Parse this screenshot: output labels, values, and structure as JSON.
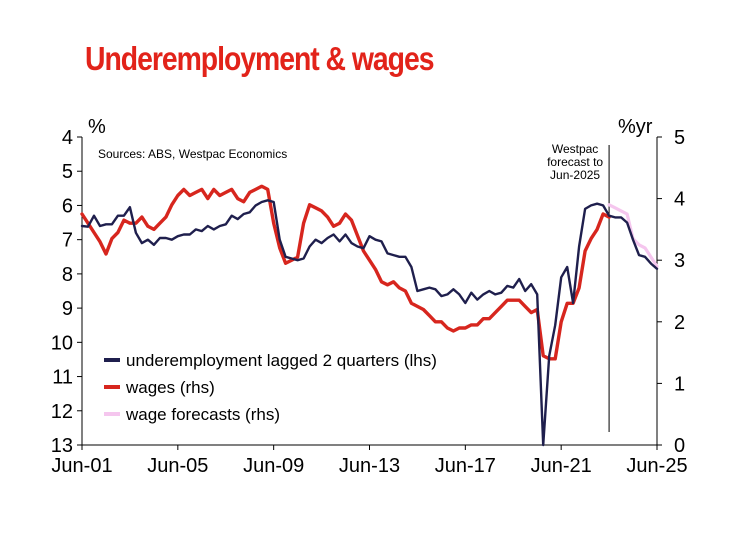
{
  "page": {
    "title": "Underemployment & wages"
  },
  "chart_data": {
    "type": "line",
    "title": "Underemployment & wages",
    "source": "Sources: ABS, Westpac Economics",
    "annotation": "Westpac forecast to Jun-2025",
    "annotation_lines": [
      "Westpac",
      "forecast to",
      "Jun-2025"
    ],
    "annotation_x": 2023.0,
    "x_ticks": [
      "Jun-01",
      "Jun-05",
      "Jun-09",
      "Jun-13",
      "Jun-17",
      "Jun-21",
      "Jun-25"
    ],
    "xlim": [
      2001.0,
      2025.0
    ],
    "y_left": {
      "unit": "%",
      "range": [
        4,
        13
      ],
      "ticks": [
        4,
        5,
        6,
        7,
        8,
        9,
        10,
        11,
        12,
        13
      ],
      "inverted": true
    },
    "y_right": {
      "unit": "%yr",
      "range": [
        0,
        5
      ],
      "ticks": [
        0,
        1,
        2,
        3,
        4,
        5
      ]
    },
    "grid": false,
    "legend_position": "bottom-left",
    "series": [
      {
        "name": "underemployment lagged 2 quarters (lhs)",
        "axis": "left",
        "color": "#1f1f4d",
        "points": [
          [
            2001.0,
            6.6
          ],
          [
            2001.25,
            6.62
          ],
          [
            2001.5,
            6.3
          ],
          [
            2001.75,
            6.6
          ],
          [
            2002.0,
            6.55
          ],
          [
            2002.25,
            6.55
          ],
          [
            2002.5,
            6.3
          ],
          [
            2002.75,
            6.3
          ],
          [
            2003.0,
            6.05
          ],
          [
            2003.25,
            6.8
          ],
          [
            2003.5,
            7.1
          ],
          [
            2003.75,
            7.0
          ],
          [
            2004.0,
            7.15
          ],
          [
            2004.25,
            6.95
          ],
          [
            2004.5,
            6.95
          ],
          [
            2004.75,
            7.0
          ],
          [
            2005.0,
            6.9
          ],
          [
            2005.25,
            6.85
          ],
          [
            2005.5,
            6.85
          ],
          [
            2005.75,
            6.7
          ],
          [
            2006.0,
            6.75
          ],
          [
            2006.25,
            6.6
          ],
          [
            2006.5,
            6.7
          ],
          [
            2006.75,
            6.6
          ],
          [
            2007.0,
            6.55
          ],
          [
            2007.25,
            6.3
          ],
          [
            2007.5,
            6.4
          ],
          [
            2007.75,
            6.25
          ],
          [
            2008.0,
            6.2
          ],
          [
            2008.25,
            6.0
          ],
          [
            2008.5,
            5.9
          ],
          [
            2008.75,
            5.85
          ],
          [
            2009.0,
            5.9
          ],
          [
            2009.25,
            7.0
          ],
          [
            2009.5,
            7.5
          ],
          [
            2009.75,
            7.55
          ],
          [
            2010.0,
            7.6
          ],
          [
            2010.25,
            7.55
          ],
          [
            2010.5,
            7.2
          ],
          [
            2010.75,
            7.0
          ],
          [
            2011.0,
            7.1
          ],
          [
            2011.25,
            6.95
          ],
          [
            2011.5,
            6.85
          ],
          [
            2011.75,
            7.05
          ],
          [
            2012.0,
            6.85
          ],
          [
            2012.25,
            7.1
          ],
          [
            2012.5,
            7.2
          ],
          [
            2012.75,
            7.25
          ],
          [
            2013.0,
            6.9
          ],
          [
            2013.25,
            7.0
          ],
          [
            2013.5,
            7.05
          ],
          [
            2013.75,
            7.4
          ],
          [
            2014.0,
            7.45
          ],
          [
            2014.25,
            7.5
          ],
          [
            2014.5,
            7.5
          ],
          [
            2014.75,
            7.8
          ],
          [
            2015.0,
            8.5
          ],
          [
            2015.25,
            8.45
          ],
          [
            2015.5,
            8.4
          ],
          [
            2015.75,
            8.45
          ],
          [
            2016.0,
            8.65
          ],
          [
            2016.25,
            8.6
          ],
          [
            2016.5,
            8.45
          ],
          [
            2016.75,
            8.6
          ],
          [
            2017.0,
            8.85
          ],
          [
            2017.25,
            8.55
          ],
          [
            2017.5,
            8.75
          ],
          [
            2017.75,
            8.6
          ],
          [
            2018.0,
            8.5
          ],
          [
            2018.25,
            8.6
          ],
          [
            2018.5,
            8.55
          ],
          [
            2018.75,
            8.35
          ],
          [
            2019.0,
            8.4
          ],
          [
            2019.25,
            8.15
          ],
          [
            2019.5,
            8.5
          ],
          [
            2019.75,
            8.3
          ],
          [
            2020.0,
            8.6
          ],
          [
            2020.25,
            13.0
          ],
          [
            2020.5,
            10.4
          ],
          [
            2020.75,
            9.5
          ],
          [
            2021.0,
            8.1
          ],
          [
            2021.25,
            7.8
          ],
          [
            2021.5,
            8.85
          ],
          [
            2021.75,
            7.2
          ],
          [
            2022.0,
            6.1
          ],
          [
            2022.25,
            6.0
          ],
          [
            2022.5,
            5.95
          ],
          [
            2022.75,
            6.0
          ],
          [
            2023.0,
            6.3
          ],
          [
            2023.25,
            6.35
          ],
          [
            2023.5,
            6.35
          ],
          [
            2023.75,
            6.5
          ],
          [
            2024.0,
            7.0
          ],
          [
            2024.25,
            7.45
          ],
          [
            2024.5,
            7.5
          ],
          [
            2024.75,
            7.7
          ],
          [
            2025.0,
            7.85
          ]
        ]
      },
      {
        "name": "wages (rhs)",
        "axis": "right",
        "color": "#d7261e",
        "points": [
          [
            2001.0,
            3.75
          ],
          [
            2001.25,
            3.6
          ],
          [
            2001.5,
            3.45
          ],
          [
            2001.75,
            3.3
          ],
          [
            2002.0,
            3.1
          ],
          [
            2002.25,
            3.35
          ],
          [
            2002.5,
            3.45
          ],
          [
            2002.75,
            3.65
          ],
          [
            2003.0,
            3.6
          ],
          [
            2003.25,
            3.6
          ],
          [
            2003.5,
            3.7
          ],
          [
            2003.75,
            3.55
          ],
          [
            2004.0,
            3.5
          ],
          [
            2004.25,
            3.6
          ],
          [
            2004.5,
            3.7
          ],
          [
            2004.75,
            3.9
          ],
          [
            2005.0,
            4.05
          ],
          [
            2005.25,
            4.15
          ],
          [
            2005.5,
            4.05
          ],
          [
            2005.75,
            4.1
          ],
          [
            2006.0,
            4.15
          ],
          [
            2006.25,
            4.0
          ],
          [
            2006.5,
            4.15
          ],
          [
            2006.75,
            4.05
          ],
          [
            2007.0,
            4.1
          ],
          [
            2007.25,
            4.15
          ],
          [
            2007.5,
            4.0
          ],
          [
            2007.75,
            3.95
          ],
          [
            2008.0,
            4.1
          ],
          [
            2008.25,
            4.15
          ],
          [
            2008.5,
            4.2
          ],
          [
            2008.75,
            4.15
          ],
          [
            2009.0,
            3.6
          ],
          [
            2009.25,
            3.2
          ],
          [
            2009.5,
            2.95
          ],
          [
            2009.75,
            3.0
          ],
          [
            2010.0,
            3.05
          ],
          [
            2010.25,
            3.6
          ],
          [
            2010.5,
            3.9
          ],
          [
            2010.75,
            3.85
          ],
          [
            2011.0,
            3.8
          ],
          [
            2011.25,
            3.7
          ],
          [
            2011.5,
            3.55
          ],
          [
            2011.75,
            3.6
          ],
          [
            2012.0,
            3.75
          ],
          [
            2012.25,
            3.65
          ],
          [
            2012.5,
            3.4
          ],
          [
            2012.75,
            3.15
          ],
          [
            2013.0,
            3.0
          ],
          [
            2013.25,
            2.85
          ],
          [
            2013.5,
            2.65
          ],
          [
            2013.75,
            2.6
          ],
          [
            2014.0,
            2.65
          ],
          [
            2014.25,
            2.55
          ],
          [
            2014.5,
            2.5
          ],
          [
            2014.75,
            2.3
          ],
          [
            2015.0,
            2.25
          ],
          [
            2015.25,
            2.2
          ],
          [
            2015.5,
            2.1
          ],
          [
            2015.75,
            2.0
          ],
          [
            2016.0,
            2.0
          ],
          [
            2016.25,
            1.9
          ],
          [
            2016.5,
            1.85
          ],
          [
            2016.75,
            1.9
          ],
          [
            2017.0,
            1.9
          ],
          [
            2017.25,
            1.95
          ],
          [
            2017.5,
            1.95
          ],
          [
            2017.75,
            2.05
          ],
          [
            2018.0,
            2.05
          ],
          [
            2018.25,
            2.15
          ],
          [
            2018.5,
            2.25
          ],
          [
            2018.75,
            2.35
          ],
          [
            2019.0,
            2.35
          ],
          [
            2019.25,
            2.35
          ],
          [
            2019.5,
            2.25
          ],
          [
            2019.75,
            2.15
          ],
          [
            2020.0,
            2.2
          ],
          [
            2020.25,
            1.45
          ],
          [
            2020.5,
            1.4
          ],
          [
            2020.75,
            1.4
          ],
          [
            2021.0,
            2.0
          ],
          [
            2021.25,
            2.3
          ],
          [
            2021.5,
            2.3
          ],
          [
            2021.75,
            2.55
          ],
          [
            2022.0,
            3.15
          ],
          [
            2022.25,
            3.35
          ],
          [
            2022.5,
            3.5
          ],
          [
            2022.75,
            3.75
          ],
          [
            2023.0,
            3.7
          ]
        ]
      },
      {
        "name": "wage forecasts (rhs)",
        "axis": "right",
        "color": "#f5c6ee",
        "points": [
          [
            2023.0,
            3.9
          ],
          [
            2023.25,
            3.85
          ],
          [
            2023.5,
            3.8
          ],
          [
            2023.75,
            3.75
          ],
          [
            2024.0,
            3.35
          ],
          [
            2024.25,
            3.25
          ],
          [
            2024.5,
            3.2
          ],
          [
            2024.75,
            3.05
          ],
          [
            2025.0,
            2.9
          ]
        ]
      }
    ]
  }
}
